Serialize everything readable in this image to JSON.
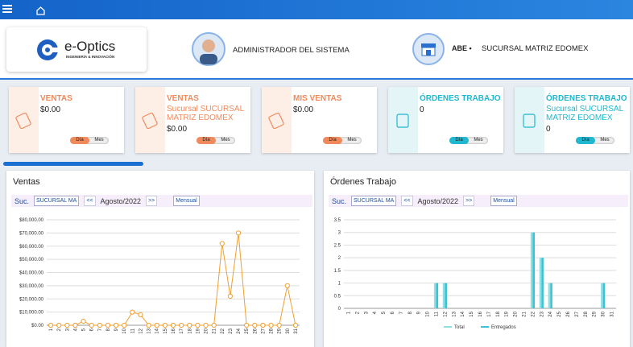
{
  "header": {
    "logo": "e-Optics",
    "logo_tagline": "INGENIERÍA & INNOVACIÓN",
    "user": "ADMINISTRADOR DEL SISTEMA",
    "user_code": "ABE",
    "branch": "SUCURSAL MATRIZ EDOMEX"
  },
  "cards": [
    {
      "title": "VENTAS",
      "value": "$0.00",
      "color": "#f08a5d",
      "tint": "#fdeee6",
      "toggle": {
        "options": [
          "Día",
          "Mes"
        ],
        "selected": 0
      }
    },
    {
      "title": "VENTAS",
      "subtitle": "Sucursal SUCURSAL MATRIZ EDOMEX",
      "value": "$0.00",
      "color": "#f08a5d",
      "tint": "#fdeee6",
      "toggle": {
        "options": [
          "Día",
          "Mes"
        ],
        "selected": 0
      }
    },
    {
      "title": "MIS VENTAS",
      "value": "$0.00",
      "color": "#f08a5d",
      "tint": "#fdeee6",
      "toggle": {
        "options": [
          "Día",
          "Mes"
        ],
        "selected": 0
      }
    },
    {
      "title": "ÓRDENES TRABAJO",
      "value": "0",
      "color": "#1fb8d0",
      "tint": "#e4f5f8",
      "toggle": {
        "options": [
          "Día",
          "Mes"
        ],
        "selected": 0
      }
    },
    {
      "title": "ÓRDENES TRABAJO",
      "subtitle": "Sucursal SUCURSAL MATRIZ EDOMEX",
      "value": "0",
      "color": "#1fb8d0",
      "tint": "#e4f5f8",
      "toggle": {
        "options": [
          "Día",
          "Mes"
        ],
        "selected": 0
      }
    }
  ],
  "chart_data": [
    {
      "type": "line",
      "title": "Ventas",
      "controls": {
        "branch_label": "Suc.",
        "branch": "SUCURSAL MA",
        "prev": "<<",
        "period": "Agosto/2022",
        "next": ">>",
        "mode": "Mensual"
      },
      "categories": [
        "1",
        "2",
        "3",
        "4",
        "5",
        "6",
        "7",
        "8",
        "9",
        "10",
        "11",
        "12",
        "13",
        "14",
        "15",
        "16",
        "17",
        "18",
        "19",
        "20",
        "21",
        "22",
        "23",
        "24",
        "25",
        "26",
        "27",
        "28",
        "29",
        "30",
        "31"
      ],
      "series": [
        {
          "color": "#f0a030",
          "values": [
            0,
            0,
            0,
            0,
            3000,
            0,
            0,
            0,
            0,
            0,
            10000,
            8000,
            0,
            0,
            0,
            0,
            0,
            0,
            0,
            0,
            0,
            62000,
            22000,
            70000,
            0,
            0,
            0,
            0,
            0,
            30000,
            0
          ]
        }
      ],
      "ylim": [
        0,
        80000
      ],
      "yticks": [
        {
          "value": 0,
          "label": "$0.00"
        },
        {
          "value": 10000,
          "label": "$10,000.00"
        },
        {
          "value": 20000,
          "label": "$20,000.00"
        },
        {
          "value": 30000,
          "label": "$30,000.00"
        },
        {
          "value": 40000,
          "label": "$40,000.00"
        },
        {
          "value": 50000,
          "label": "$50,000.00"
        },
        {
          "value": 60000,
          "label": "$60,000.00"
        },
        {
          "value": 70000,
          "label": "$70,000.00"
        },
        {
          "value": 80000,
          "label": "$80,000.00"
        }
      ],
      "grid": true
    },
    {
      "type": "bar",
      "title": "Órdenes Trabajo",
      "controls": {
        "branch_label": "Suc.",
        "branch": "SUCURSAL MA",
        "prev": "<<",
        "period": "Agosto/2022",
        "next": ">>",
        "mode": "Mensual"
      },
      "categories": [
        "1",
        "2",
        "3",
        "4",
        "5",
        "6",
        "7",
        "8",
        "9",
        "10",
        "11",
        "12",
        "13",
        "14",
        "15",
        "16",
        "17",
        "18",
        "19",
        "20",
        "21",
        "22",
        "23",
        "24",
        "25",
        "26",
        "27",
        "28",
        "29",
        "30",
        "31"
      ],
      "series": [
        {
          "name": "Total",
          "color": "#8fe0e6",
          "values": [
            0,
            0,
            0,
            0,
            0,
            0,
            0,
            0,
            0,
            0,
            1,
            1,
            0,
            0,
            0,
            0,
            0,
            0,
            0,
            0,
            0,
            3,
            2,
            1,
            0,
            0,
            0,
            0,
            0,
            1,
            0
          ]
        },
        {
          "name": "Entregados",
          "color": "#3cc3d3",
          "values": [
            0,
            0,
            0,
            0,
            0,
            0,
            0,
            0,
            0,
            0,
            1,
            1,
            0,
            0,
            0,
            0,
            0,
            0,
            0,
            0,
            0,
            3,
            2,
            1,
            0,
            0,
            0,
            0,
            0,
            1,
            0
          ]
        }
      ],
      "ylim": [
        0,
        3.5
      ],
      "yticks": [
        0,
        0.5,
        1,
        1.5,
        2,
        2.5,
        3,
        3.5
      ],
      "grid": true
    }
  ]
}
